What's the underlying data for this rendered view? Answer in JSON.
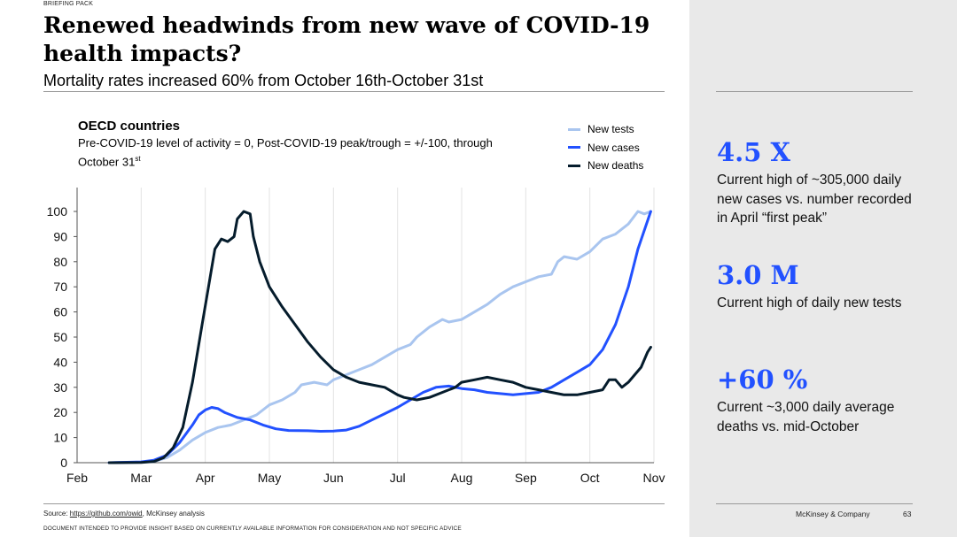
{
  "header": {
    "kicker": "BRIEFING PACK",
    "title": "Renewed headwinds from new wave of COVID-19 health impacts?",
    "subtitle": "Mortality rates increased 60% from October 16th-October 31st"
  },
  "chart_data": {
    "type": "line",
    "title": "OECD countries",
    "subtitle_main": "Pre-COVID-19 level of activity = 0, Post-COVID-19 peak/trough = +/-100, through October 31",
    "subtitle_sup": "st",
    "xlabel": "",
    "ylabel": "",
    "ylim": [
      0,
      100
    ],
    "yticks": [
      0,
      10,
      20,
      30,
      40,
      50,
      60,
      70,
      80,
      90,
      100
    ],
    "xlim": [
      0,
      9
    ],
    "xtick_labels": [
      "Feb",
      "Mar",
      "Apr",
      "May",
      "Jun",
      "Jul",
      "Aug",
      "Sep",
      "Oct",
      "Nov"
    ],
    "grid": "vertical",
    "legend_position": "top-right",
    "series": [
      {
        "name": "New tests",
        "color": "#a9c5ef",
        "points": [
          [
            0.5,
            0
          ],
          [
            1.0,
            0.2
          ],
          [
            1.2,
            0.5
          ],
          [
            1.4,
            2
          ],
          [
            1.6,
            5
          ],
          [
            1.8,
            9
          ],
          [
            2.0,
            12
          ],
          [
            2.2,
            14
          ],
          [
            2.4,
            15
          ],
          [
            2.6,
            17
          ],
          [
            2.8,
            19
          ],
          [
            3.0,
            23
          ],
          [
            3.2,
            25
          ],
          [
            3.4,
            28
          ],
          [
            3.5,
            31
          ],
          [
            3.7,
            32
          ],
          [
            3.9,
            31
          ],
          [
            4.0,
            33
          ],
          [
            4.2,
            35
          ],
          [
            4.4,
            37
          ],
          [
            4.6,
            39
          ],
          [
            4.8,
            42
          ],
          [
            5.0,
            45
          ],
          [
            5.2,
            47
          ],
          [
            5.3,
            50
          ],
          [
            5.5,
            54
          ],
          [
            5.7,
            57
          ],
          [
            5.8,
            56
          ],
          [
            6.0,
            57
          ],
          [
            6.2,
            60
          ],
          [
            6.4,
            63
          ],
          [
            6.6,
            67
          ],
          [
            6.8,
            70
          ],
          [
            7.0,
            72
          ],
          [
            7.2,
            74
          ],
          [
            7.4,
            75
          ],
          [
            7.5,
            80
          ],
          [
            7.6,
            82
          ],
          [
            7.8,
            81
          ],
          [
            8.0,
            84
          ],
          [
            8.2,
            89
          ],
          [
            8.4,
            91
          ],
          [
            8.6,
            95
          ],
          [
            8.75,
            100
          ],
          [
            8.85,
            99
          ],
          [
            8.95,
            100
          ]
        ]
      },
      {
        "name": "New cases",
        "color": "#2251ff",
        "points": [
          [
            0.5,
            0
          ],
          [
            1.0,
            0.3
          ],
          [
            1.2,
            1
          ],
          [
            1.4,
            3
          ],
          [
            1.6,
            8
          ],
          [
            1.8,
            15
          ],
          [
            1.9,
            19
          ],
          [
            2.0,
            21
          ],
          [
            2.1,
            22
          ],
          [
            2.2,
            21.5
          ],
          [
            2.3,
            20
          ],
          [
            2.5,
            18
          ],
          [
            2.7,
            17
          ],
          [
            2.9,
            15
          ],
          [
            3.1,
            13.5
          ],
          [
            3.3,
            12.8
          ],
          [
            3.6,
            12.7
          ],
          [
            3.8,
            12.5
          ],
          [
            4.0,
            12.6
          ],
          [
            4.2,
            13
          ],
          [
            4.4,
            14.5
          ],
          [
            4.6,
            17
          ],
          [
            4.8,
            19.5
          ],
          [
            5.0,
            22
          ],
          [
            5.2,
            25
          ],
          [
            5.4,
            28
          ],
          [
            5.6,
            30
          ],
          [
            5.8,
            30.5
          ],
          [
            6.0,
            29.5
          ],
          [
            6.2,
            29
          ],
          [
            6.4,
            28
          ],
          [
            6.6,
            27.5
          ],
          [
            6.8,
            27
          ],
          [
            7.0,
            27.5
          ],
          [
            7.2,
            28
          ],
          [
            7.4,
            30
          ],
          [
            7.6,
            33
          ],
          [
            7.8,
            36
          ],
          [
            8.0,
            39
          ],
          [
            8.2,
            45
          ],
          [
            8.4,
            55
          ],
          [
            8.6,
            70
          ],
          [
            8.75,
            85
          ],
          [
            8.95,
            100
          ]
        ]
      },
      {
        "name": "New deaths",
        "color": "#051c2c",
        "points": [
          [
            0.5,
            0
          ],
          [
            1.0,
            0.1
          ],
          [
            1.2,
            0.5
          ],
          [
            1.35,
            2
          ],
          [
            1.5,
            6
          ],
          [
            1.65,
            14
          ],
          [
            1.8,
            32
          ],
          [
            1.95,
            55
          ],
          [
            2.05,
            70
          ],
          [
            2.15,
            85
          ],
          [
            2.25,
            89
          ],
          [
            2.35,
            88
          ],
          [
            2.45,
            90
          ],
          [
            2.5,
            97
          ],
          [
            2.6,
            100
          ],
          [
            2.7,
            99
          ],
          [
            2.75,
            90
          ],
          [
            2.85,
            80
          ],
          [
            3.0,
            70
          ],
          [
            3.2,
            62
          ],
          [
            3.4,
            55
          ],
          [
            3.6,
            48
          ],
          [
            3.8,
            42
          ],
          [
            4.0,
            37
          ],
          [
            4.2,
            34
          ],
          [
            4.4,
            32
          ],
          [
            4.6,
            31
          ],
          [
            4.8,
            30
          ],
          [
            5.0,
            27
          ],
          [
            5.1,
            26
          ],
          [
            5.3,
            25
          ],
          [
            5.5,
            26
          ],
          [
            5.7,
            28
          ],
          [
            5.9,
            30
          ],
          [
            6.0,
            32
          ],
          [
            6.2,
            33
          ],
          [
            6.4,
            34
          ],
          [
            6.6,
            33
          ],
          [
            6.8,
            32
          ],
          [
            7.0,
            30
          ],
          [
            7.2,
            29
          ],
          [
            7.4,
            28
          ],
          [
            7.6,
            27
          ],
          [
            7.8,
            27
          ],
          [
            8.0,
            28
          ],
          [
            8.2,
            29
          ],
          [
            8.3,
            33
          ],
          [
            8.4,
            33
          ],
          [
            8.5,
            30
          ],
          [
            8.6,
            32
          ],
          [
            8.8,
            38
          ],
          [
            8.9,
            44
          ],
          [
            8.95,
            46
          ]
        ]
      }
    ]
  },
  "kpis": [
    {
      "value": "4.5 X",
      "description": "Current high of ~305,000 daily new cases vs. number recorded in April “first peak”"
    },
    {
      "value": "3.0 M",
      "description": "Current high of daily new tests"
    },
    {
      "value": "+60 %",
      "description": "Current ~3,000 daily average deaths vs. mid-October"
    }
  ],
  "footer": {
    "source_label": "Source: ",
    "source_link": "https://github.com/owid",
    "source_rest": ", McKinsey analysis",
    "disclaimer": "DOCUMENT INTENDED TO PROVIDE INSIGHT BASED ON CURRENTLY AVAILABLE INFORMATION FOR CONSIDERATION AND NOT SPECIFIC ADVICE",
    "brand": "McKinsey & Company",
    "page": "63"
  },
  "colors": {
    "accent": "#2251ff",
    "panel_bg": "#e9e9e9",
    "deaths": "#051c2c",
    "tests": "#a9c5ef"
  }
}
